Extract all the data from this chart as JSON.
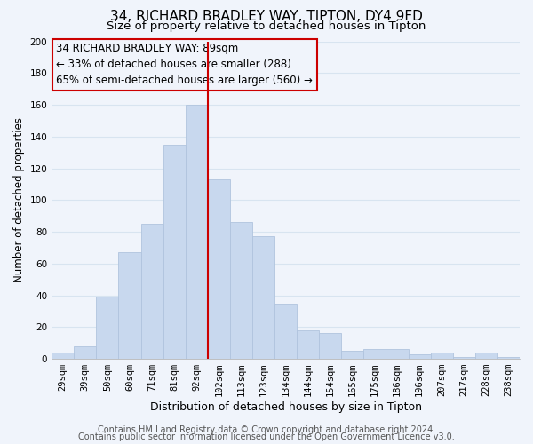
{
  "title": "34, RICHARD BRADLEY WAY, TIPTON, DY4 9FD",
  "subtitle": "Size of property relative to detached houses in Tipton",
  "xlabel": "Distribution of detached houses by size in Tipton",
  "ylabel": "Number of detached properties",
  "bar_color": "#c8d8ee",
  "bar_edge_color": "#b0c4de",
  "categories": [
    "29sqm",
    "39sqm",
    "50sqm",
    "60sqm",
    "71sqm",
    "81sqm",
    "92sqm",
    "102sqm",
    "113sqm",
    "123sqm",
    "134sqm",
    "144sqm",
    "154sqm",
    "165sqm",
    "175sqm",
    "186sqm",
    "196sqm",
    "207sqm",
    "217sqm",
    "228sqm",
    "238sqm"
  ],
  "values": [
    4,
    8,
    39,
    67,
    85,
    135,
    160,
    113,
    86,
    77,
    35,
    18,
    16,
    5,
    6,
    6,
    3,
    4,
    1,
    4,
    1
  ],
  "vline_bin_index": 6,
  "annotation_title": "34 RICHARD BRADLEY WAY: 89sqm",
  "annotation_line1": "← 33% of detached houses are smaller (288)",
  "annotation_line2": "65% of semi-detached houses are larger (560) →",
  "ylim": [
    0,
    200
  ],
  "yticks": [
    0,
    20,
    40,
    60,
    80,
    100,
    120,
    140,
    160,
    180,
    200
  ],
  "footer1": "Contains HM Land Registry data © Crown copyright and database right 2024.",
  "footer2": "Contains public sector information licensed under the Open Government Licence v3.0.",
  "background_color": "#f0f4fb",
  "grid_color": "#d8e4f0",
  "vline_color": "#cc0000",
  "annotation_box_edge": "#cc0000",
  "title_fontsize": 11,
  "subtitle_fontsize": 9.5,
  "xlabel_fontsize": 9,
  "ylabel_fontsize": 8.5,
  "tick_fontsize": 7.5,
  "annotation_fontsize": 8.5,
  "footer_fontsize": 7
}
